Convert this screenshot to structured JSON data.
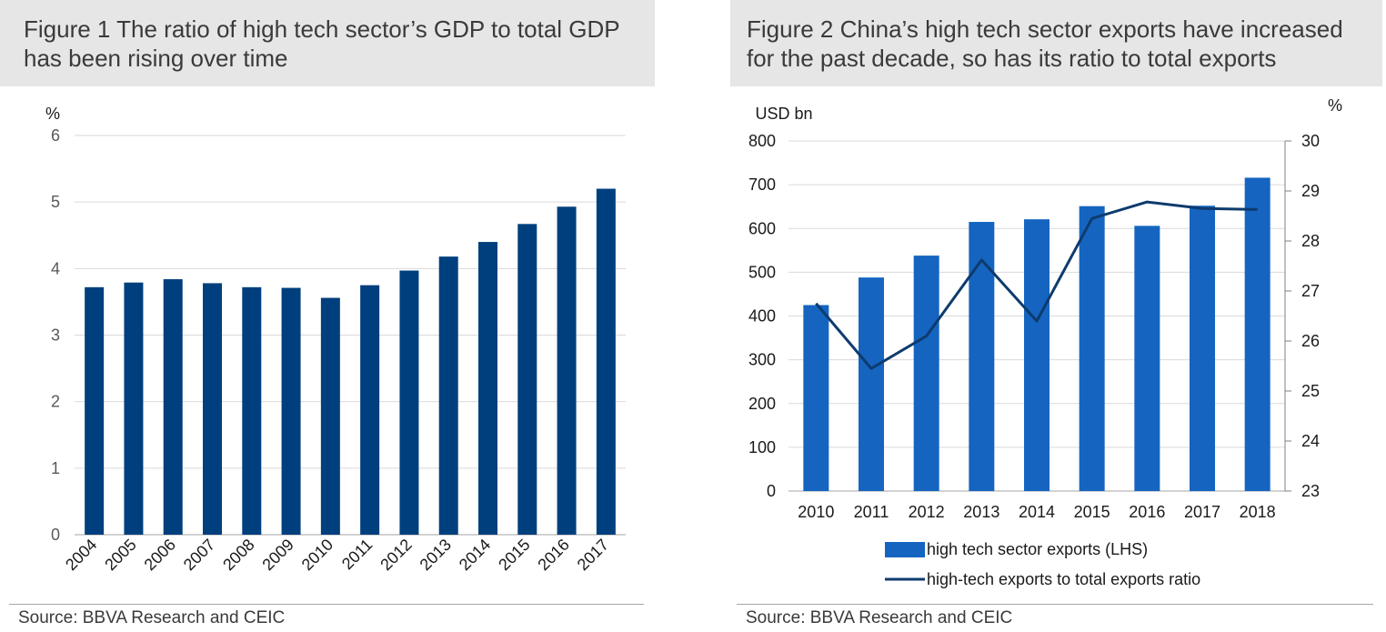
{
  "figure1": {
    "title_line1": "Figure 1 The ratio of high tech sector’s GDP to total GDP",
    "title_line2": "has been rising over time",
    "source": "Source: BBVA Research and CEIC"
  },
  "figure2": {
    "title_line1": "Figure 2 China’s high tech sector exports have increased",
    "title_line2": "for the past decade, so has its ratio to total exports",
    "source": "Source: BBVA Research and CEIC"
  },
  "chart_data": [
    {
      "type": "bar",
      "title": "Figure 1 The ratio of high tech sector’s GDP to total GDP has been rising over time",
      "ylabel": "%",
      "xlabel": "",
      "ylim": [
        0,
        6
      ],
      "yticks": [
        0,
        1,
        2,
        3,
        4,
        5,
        6
      ],
      "grid": true,
      "bar_color": "#003f7d",
      "categories": [
        "2004",
        "2005",
        "2006",
        "2007",
        "2008",
        "2009",
        "2010",
        "2011",
        "2012",
        "2013",
        "2014",
        "2015",
        "2016",
        "2017"
      ],
      "values": [
        3.72,
        3.79,
        3.84,
        3.78,
        3.72,
        3.71,
        3.56,
        3.75,
        3.97,
        4.18,
        4.4,
        4.67,
        4.93,
        5.2
      ]
    },
    {
      "type": "bar",
      "title": "Figure 2 China’s high tech sector exports have increased for the past decade, so has its ratio to total exports",
      "ylabel": "USD bn",
      "y2label": "%",
      "xlabel": "",
      "ylim": [
        0,
        800
      ],
      "yticks": [
        0,
        100,
        200,
        300,
        400,
        500,
        600,
        700,
        800
      ],
      "y2lim": [
        23,
        30
      ],
      "y2ticks": [
        23,
        24,
        25,
        26,
        27,
        28,
        29,
        30
      ],
      "grid": true,
      "legend_position": "bottom",
      "categories": [
        "2010",
        "2011",
        "2012",
        "2013",
        "2014",
        "2015",
        "2016",
        "2017",
        "2018"
      ],
      "series": [
        {
          "name": "high tech sector exports (LHS)",
          "type": "bar",
          "axis": "left",
          "color": "#1565c0",
          "values": [
            425,
            488,
            538,
            615,
            621,
            651,
            606,
            652,
            716
          ]
        },
        {
          "name": "high-tech exports to total exports ratio",
          "type": "line",
          "axis": "right",
          "color": "#0d3b6e",
          "values": [
            26.75,
            25.45,
            26.1,
            27.62,
            26.4,
            28.45,
            28.78,
            28.65,
            28.63
          ]
        }
      ]
    }
  ]
}
